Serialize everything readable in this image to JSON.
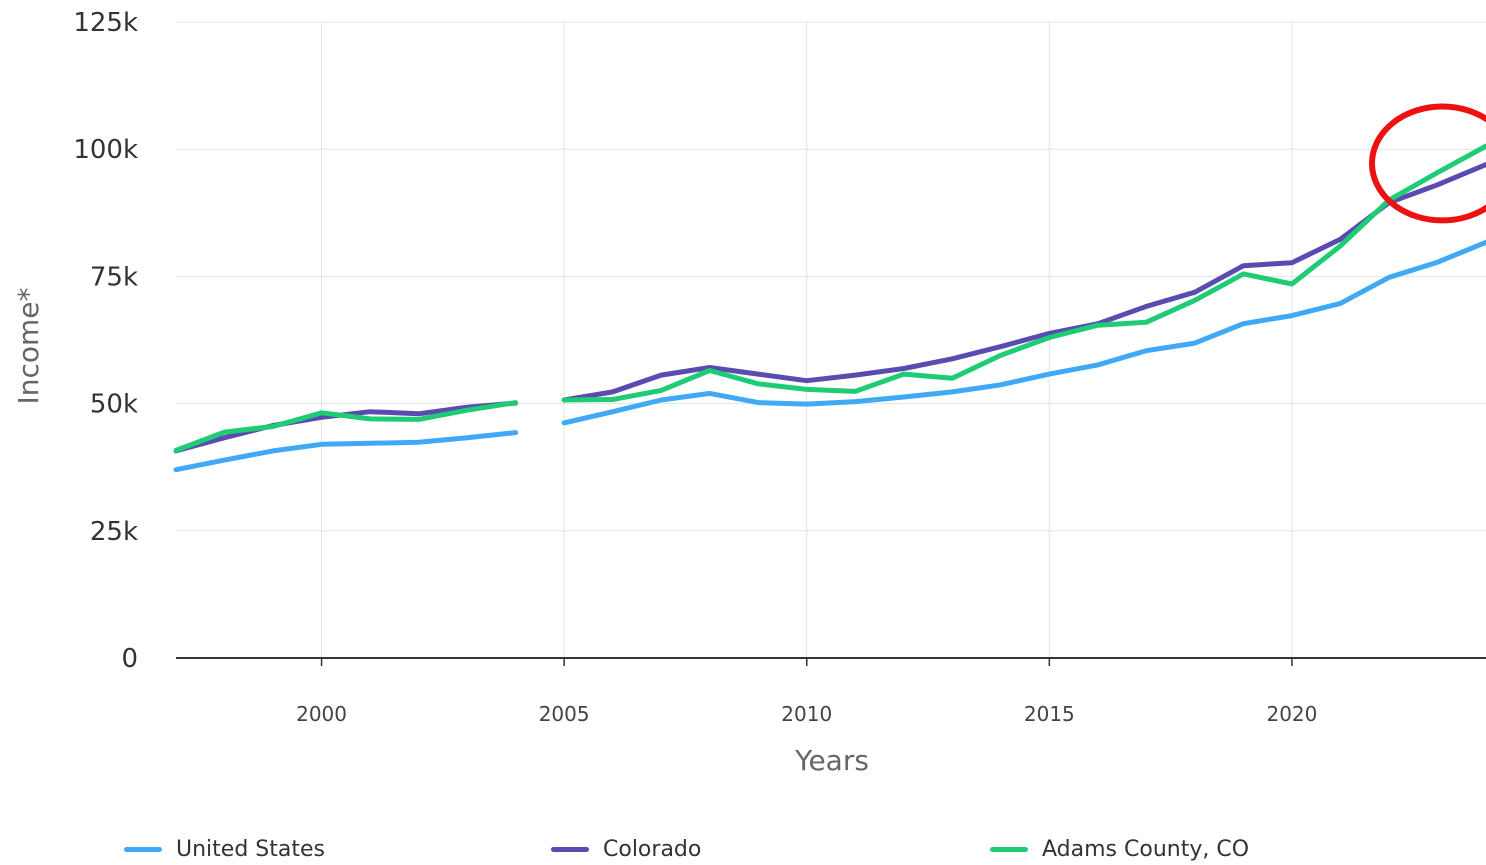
{
  "chart_data": {
    "type": "line",
    "xlabel": "Years",
    "ylabel": "Income*",
    "xlim": [
      1997,
      2024
    ],
    "ylim": [
      0,
      125000
    ],
    "x_ticks": [
      2000,
      2005,
      2010,
      2015,
      2020
    ],
    "x_tick_labels": [
      "2000",
      "2005",
      "2010",
      "2015",
      "2020"
    ],
    "y_ticks": [
      0,
      25000,
      50000,
      75000,
      100000,
      125000
    ],
    "y_tick_labels": [
      "0",
      "25k",
      "50k",
      "75k",
      "100k",
      "125k"
    ],
    "grid": true,
    "legend_position": "bottom",
    "series": [
      {
        "name": "United States",
        "color": "#3fa9f5",
        "points": [
          [
            1997,
            37000
          ],
          [
            1998,
            38900
          ],
          [
            1999,
            40700
          ],
          [
            2000,
            42000
          ],
          [
            2001,
            42200
          ],
          [
            2002,
            42400
          ],
          [
            2003,
            43300
          ],
          [
            2004,
            44300
          ],
          [
            2005,
            46200
          ],
          [
            2006,
            48400
          ],
          [
            2007,
            50700
          ],
          [
            2008,
            52000
          ],
          [
            2009,
            50200
          ],
          [
            2010,
            49900
          ],
          [
            2011,
            50400
          ],
          [
            2012,
            51300
          ],
          [
            2013,
            52300
          ],
          [
            2014,
            53700
          ],
          [
            2015,
            55800
          ],
          [
            2016,
            57600
          ],
          [
            2017,
            60400
          ],
          [
            2018,
            61900
          ],
          [
            2019,
            65700
          ],
          [
            2020,
            67300
          ],
          [
            2021,
            69700
          ],
          [
            2022,
            74800
          ],
          [
            2023,
            77800
          ],
          [
            2024,
            81700
          ]
        ]
      },
      {
        "name": "Colorado",
        "color": "#5a4bb0",
        "points": [
          [
            1997,
            40700
          ],
          [
            1998,
            43300
          ],
          [
            1999,
            45700
          ],
          [
            2000,
            47300
          ],
          [
            2001,
            48400
          ],
          [
            2002,
            48000
          ],
          [
            2003,
            49300
          ],
          [
            2004,
            50100
          ],
          [
            2005,
            50700
          ],
          [
            2006,
            52300
          ],
          [
            2007,
            55600
          ],
          [
            2008,
            57100
          ],
          [
            2009,
            55800
          ],
          [
            2010,
            54500
          ],
          [
            2011,
            55600
          ],
          [
            2012,
            56900
          ],
          [
            2013,
            58800
          ],
          [
            2014,
            61200
          ],
          [
            2015,
            63800
          ],
          [
            2016,
            65700
          ],
          [
            2017,
            69100
          ],
          [
            2018,
            71900
          ],
          [
            2019,
            77100
          ],
          [
            2020,
            77700
          ],
          [
            2021,
            82300
          ],
          [
            2022,
            89500
          ],
          [
            2023,
            93000
          ],
          [
            2024,
            97000
          ]
        ]
      },
      {
        "name": "Adams County, CO",
        "color": "#1fcc76",
        "points": [
          [
            1997,
            40800
          ],
          [
            1998,
            44400
          ],
          [
            1999,
            45500
          ],
          [
            2000,
            48200
          ],
          [
            2001,
            47000
          ],
          [
            2002,
            46900
          ],
          [
            2003,
            48700
          ],
          [
            2004,
            50200
          ],
          [
            2005,
            50700
          ],
          [
            2006,
            50800
          ],
          [
            2007,
            52600
          ],
          [
            2008,
            56500
          ],
          [
            2009,
            53900
          ],
          [
            2010,
            52800
          ],
          [
            2011,
            52400
          ],
          [
            2012,
            55800
          ],
          [
            2013,
            55000
          ],
          [
            2014,
            59500
          ],
          [
            2015,
            63000
          ],
          [
            2016,
            65400
          ],
          [
            2017,
            66000
          ],
          [
            2018,
            70300
          ],
          [
            2019,
            75500
          ],
          [
            2020,
            73500
          ],
          [
            2021,
            81000
          ],
          [
            2022,
            90000
          ],
          [
            2023,
            95400
          ],
          [
            2024,
            100600
          ]
        ]
      }
    ],
    "series_gaps_after": [
      2004
    ],
    "annotation": {
      "shape": "ellipse",
      "color": "#ee1111",
      "center": [
        2023.1,
        97200
      ],
      "radius_x": 1.45,
      "radius_y": 11200
    }
  }
}
